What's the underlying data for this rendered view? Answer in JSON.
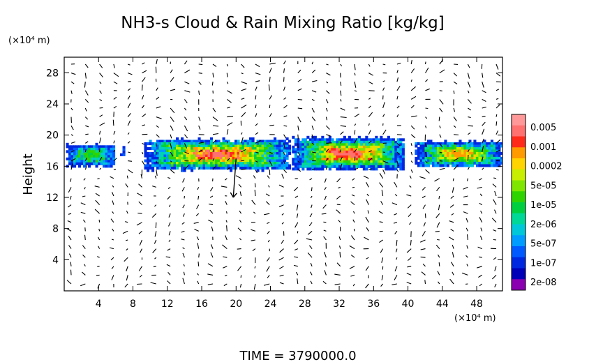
{
  "chart_data": {
    "type": "heatmap",
    "title": "NH3-s Cloud & Rain Mixing Ratio [kg/kg]",
    "ylabel": "Height",
    "y_unit": "(×10⁴ m)",
    "x_unit": "(×10⁴ m)",
    "xlim": [
      0,
      51
    ],
    "ylim": [
      0,
      30
    ],
    "x_ticks": [
      "4",
      "8",
      "12",
      "16",
      "20",
      "24",
      "28",
      "32",
      "36",
      "40",
      "44",
      "48"
    ],
    "y_ticks": [
      "4",
      "8",
      "12",
      "16",
      "20",
      "24",
      "28"
    ],
    "x_tick_values": [
      4,
      8,
      12,
      16,
      20,
      24,
      28,
      32,
      36,
      40,
      44,
      48
    ],
    "y_tick_values": [
      4,
      8,
      12,
      16,
      20,
      24,
      28
    ],
    "colorbar": {
      "labels": [
        "0.005",
        "0.001",
        "0.0002",
        "5e-05",
        "1e-05",
        "2e-06",
        "5e-07",
        "1e-07",
        "2e-08"
      ],
      "colors": [
        "#ff9999",
        "#ff7070",
        "#ff2a1a",
        "#ff9a00",
        "#ffd400",
        "#c8ef00",
        "#7fe600",
        "#2fd400",
        "#00d040",
        "#00d898",
        "#00c8d8",
        "#009cff",
        "#005aff",
        "#0028e0",
        "#0000b8",
        "#8a00b0"
      ]
    },
    "cloud_band": {
      "description_levels": "mixing ratio field concentrated between heights 15.5 and 19.5",
      "segments": [
        {
          "x_start": 0.2,
          "x_end": 5.8,
          "y_bottom": 16.0,
          "y_top": 19.0,
          "peak": "1e-05"
        },
        {
          "x_start": 6.5,
          "x_end": 6.9,
          "y_bottom": 17.6,
          "y_top": 18.6,
          "peak": "1e-07"
        },
        {
          "x_start": 9.3,
          "x_end": 26.2,
          "y_bottom": 15.6,
          "y_top": 19.7,
          "peak": "0.001"
        },
        {
          "x_start": 26.5,
          "x_end": 39.5,
          "y_bottom": 15.6,
          "y_top": 19.9,
          "peak": "0.001"
        },
        {
          "x_start": 40.8,
          "x_end": 51.0,
          "y_bottom": 16.0,
          "y_top": 19.4,
          "peak": "0.0002"
        }
      ]
    },
    "vector_field": "wind vectors on a regular grid across the full domain",
    "grid": false
  },
  "footer": {
    "time_label": "TIME = 3790000.0"
  },
  "colors": {
    "background": "#ffffff",
    "axes": "#000000",
    "vectors": "#000000"
  }
}
